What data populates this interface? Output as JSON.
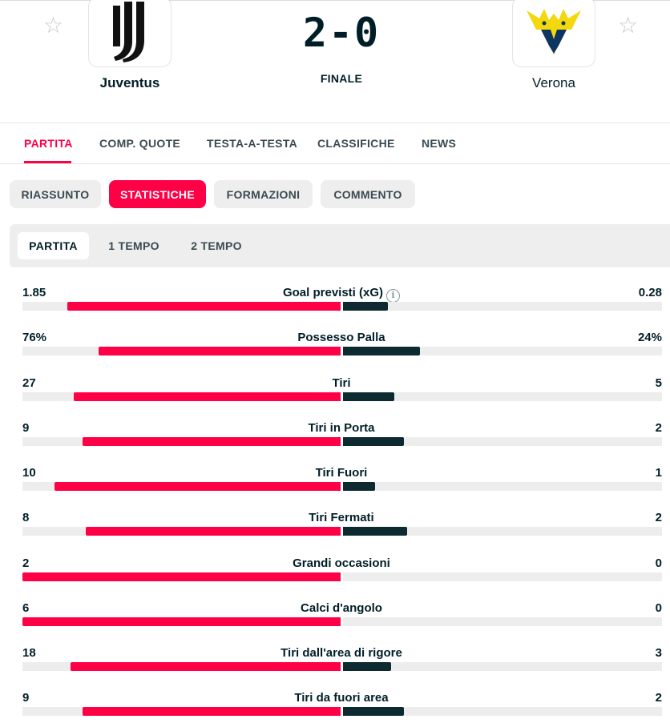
{
  "match": {
    "home_team": "Juventus",
    "away_team": "Verona",
    "score": "2-0",
    "status": "FINALE"
  },
  "icons": {
    "favorite": "star-outline-icon",
    "info": "info-icon",
    "favorite_glyph": "☆",
    "info_glyph": "i"
  },
  "colors": {
    "accent": "#ff0046",
    "home_bar": "#ff0046",
    "away_bar": "#0c2a30",
    "track": "#ededed",
    "text": "#001e28"
  },
  "main_tabs": [
    {
      "label": "PARTITA",
      "active": true
    },
    {
      "label": "COMP. QUOTE",
      "active": false
    },
    {
      "label": "TESTA-A-TESTA",
      "active": false
    },
    {
      "label": "CLASSIFICHE",
      "active": false
    },
    {
      "label": "NEWS",
      "active": false
    }
  ],
  "sub_tabs": [
    {
      "label": "RIASSUNTO",
      "active": false
    },
    {
      "label": "STATISTICHE",
      "active": true
    },
    {
      "label": "FORMAZIONI",
      "active": false
    },
    {
      "label": "COMMENTO",
      "active": false
    }
  ],
  "periods": [
    {
      "label": "PARTITA",
      "active": true
    },
    {
      "label": "1 TEMPO",
      "active": false
    },
    {
      "label": "2 TEMPO",
      "active": false
    }
  ],
  "stats": [
    {
      "label": "Goal previsti (xG)",
      "home": "1.85",
      "away": "0.28",
      "home_share": 0.86,
      "away_share": 0.14,
      "info": true
    },
    {
      "label": "Possesso Palla",
      "home": "76%",
      "away": "24%",
      "home_share": 0.76,
      "away_share": 0.24
    },
    {
      "label": "Tiri",
      "home": "27",
      "away": "5",
      "home_share": 0.84,
      "away_share": 0.16
    },
    {
      "label": "Tiri in Porta",
      "home": "9",
      "away": "2",
      "home_share": 0.81,
      "away_share": 0.19
    },
    {
      "label": "Tiri Fuori",
      "home": "10",
      "away": "1",
      "home_share": 0.9,
      "away_share": 0.1
    },
    {
      "label": "Tiri Fermati",
      "home": "8",
      "away": "2",
      "home_share": 0.8,
      "away_share": 0.2
    },
    {
      "label": "Grandi occasioni",
      "home": "2",
      "away": "0",
      "home_share": 1.0,
      "away_share": 0.0
    },
    {
      "label": "Calci d'angolo",
      "home": "6",
      "away": "0",
      "home_share": 1.0,
      "away_share": 0.0
    },
    {
      "label": "Tiri dall'area di rigore",
      "home": "18",
      "away": "3",
      "home_share": 0.85,
      "away_share": 0.15
    },
    {
      "label": "Tiri da fuori area",
      "home": "9",
      "away": "2",
      "home_share": 0.81,
      "away_share": 0.19
    }
  ]
}
